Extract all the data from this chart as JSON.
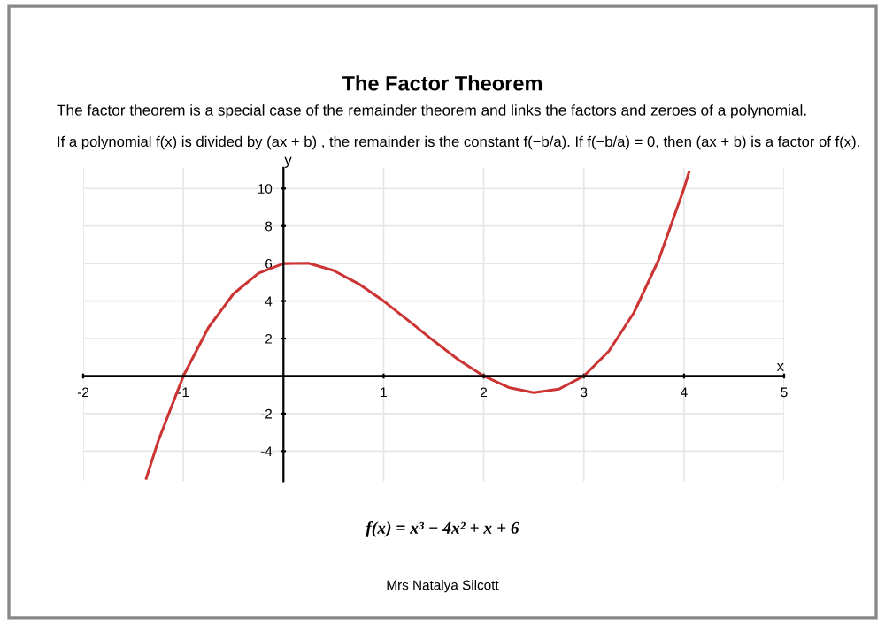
{
  "chart_data": {
    "type": "line",
    "title": "The Factor Theorem",
    "subtitle": "The factor theorem is a special case of the remainder theorem and links the factors and zeroes of a polynomial.",
    "annotations": [
      "If a polynomial f(x) is divided by (ax + b) , the remainder is the constant f(−b/a). If f(−b/a) = 0, then (ax + b) is a factor of f(x).",
      "f(x) = x³ − 4x² + x + 6",
      "Mrs Natalya Silcott"
    ],
    "xlabel": "x",
    "ylabel": "y",
    "series": [
      {
        "color": "#cc3333",
        "x": [
          -1.37,
          -1.25,
          -1,
          -0.75,
          -0.5,
          -0.25,
          0,
          0.25,
          0.5,
          0.75,
          1,
          1.25,
          1.5,
          1.75,
          2,
          2.25,
          2.5,
          2.75,
          3,
          3.25,
          3.5,
          3.75,
          4,
          4.05
        ],
        "values": [
          -5.45,
          -3.45,
          0,
          2.58,
          4.38,
          5.48,
          6,
          6.02,
          5.63,
          4.92,
          4,
          2.95,
          1.88,
          0.86,
          0,
          -0.61,
          -0.88,
          -0.7,
          0,
          1.33,
          3.38,
          6.23,
          10,
          10.87
        ]
      }
    ],
    "xlim": [
      -2,
      5
    ],
    "ylim": [
      -5.6,
      11.1
    ],
    "xticks": [
      -2,
      -1,
      1,
      2,
      3,
      4,
      5
    ],
    "yticks": [
      -4,
      -2,
      2,
      4,
      6,
      8,
      10
    ],
    "grid": true,
    "marker": "none",
    "line_style": "solid"
  }
}
